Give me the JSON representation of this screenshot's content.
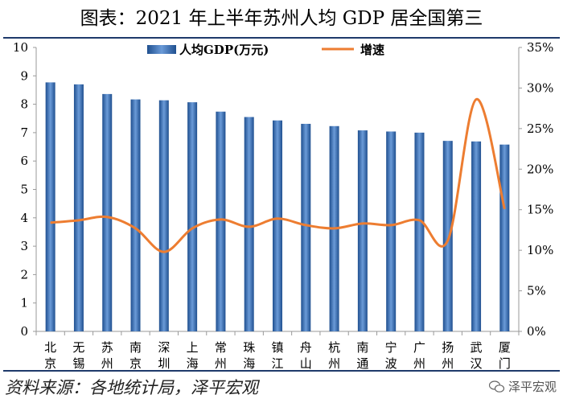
{
  "title": "图表：2021 年上半年苏州人均 GDP 居全国第三",
  "source": "资料来源：各地统计局，泽平宏观",
  "watermark": "泽平宏观",
  "colors": {
    "bar": "#3a6fb5",
    "bar_dark": "#1f4f8f",
    "line": "#ed7d31",
    "rule": "#1f3a6b"
  },
  "chart_data": {
    "type": "bar",
    "categories": [
      "北京",
      "无锡",
      "苏州",
      "南京",
      "深圳",
      "上海",
      "常州",
      "珠海",
      "镇江",
      "舟山",
      "杭州",
      "南通",
      "宁波",
      "广州",
      "扬州",
      "武汉",
      "厦门"
    ],
    "category_labels": [
      [
        "北",
        "京"
      ],
      [
        "无",
        "锡"
      ],
      [
        "苏",
        "州"
      ],
      [
        "南",
        "京"
      ],
      [
        "深",
        "圳"
      ],
      [
        "上",
        "海"
      ],
      [
        "常",
        "州"
      ],
      [
        "珠",
        "海"
      ],
      [
        "镇",
        "江"
      ],
      [
        "舟",
        "山"
      ],
      [
        "杭",
        "州"
      ],
      [
        "南",
        "通"
      ],
      [
        "宁",
        "波"
      ],
      [
        "广",
        "州"
      ],
      [
        "扬",
        "州"
      ],
      [
        "武",
        "汉"
      ],
      [
        "厦",
        "门"
      ]
    ],
    "series": [
      {
        "name": "人均GDP(万元)",
        "type": "bar",
        "axis": "left",
        "values": [
          8.77,
          8.7,
          8.36,
          8.17,
          8.14,
          8.07,
          7.74,
          7.55,
          7.43,
          7.31,
          7.23,
          7.08,
          7.04,
          7.0,
          6.71,
          6.69,
          6.58
        ]
      },
      {
        "name": "增速",
        "type": "line",
        "axis": "right",
        "values": [
          13.4,
          13.7,
          14.1,
          12.7,
          9.8,
          12.7,
          13.8,
          12.9,
          13.9,
          13.1,
          12.7,
          13.3,
          13.1,
          13.7,
          11.2,
          28.6,
          15.1
        ]
      }
    ],
    "y_left": {
      "min": 0,
      "max": 10,
      "ticks": [
        "0",
        "1",
        "2",
        "3",
        "4",
        "5",
        "6",
        "7",
        "8",
        "9",
        "10"
      ]
    },
    "y_right": {
      "min": 0,
      "max": 35,
      "ticks": [
        "0%",
        "5%",
        "10%",
        "15%",
        "20%",
        "25%",
        "30%",
        "35%"
      ]
    },
    "legend_position": "top-center",
    "grid": false
  }
}
